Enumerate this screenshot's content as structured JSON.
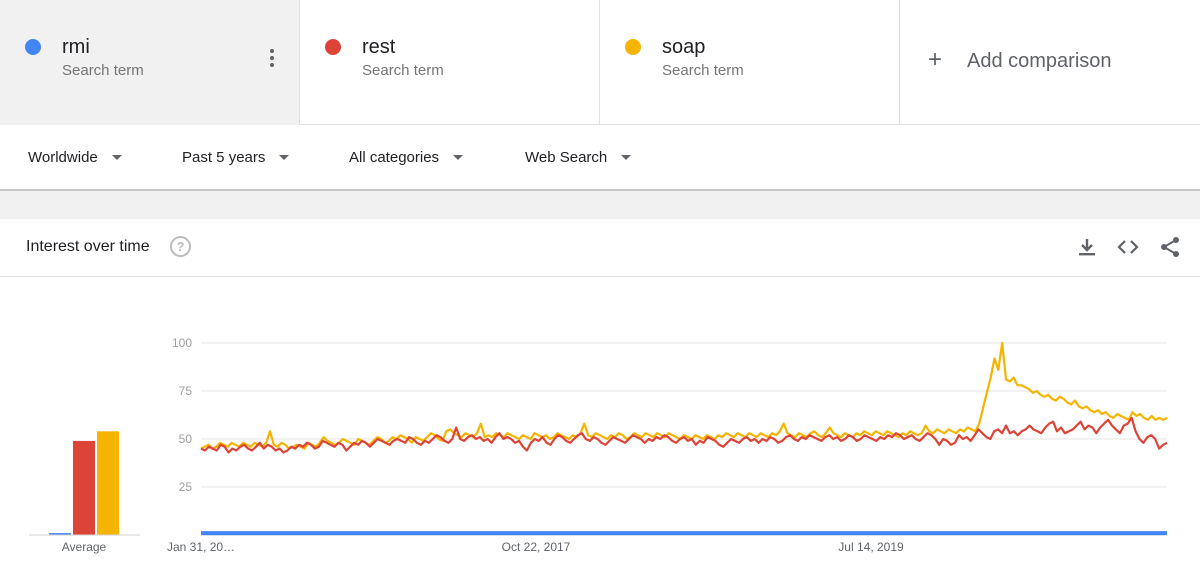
{
  "terms": [
    {
      "name": "rmi",
      "sub": "Search term",
      "color": "#4285f4"
    },
    {
      "name": "rest",
      "sub": "Search term",
      "color": "#db4437"
    },
    {
      "name": "soap",
      "sub": "Search term",
      "color": "#f4b400"
    }
  ],
  "add_comparison": "Add comparison",
  "filters": {
    "region": "Worldwide",
    "period": "Past 5 years",
    "category": "All categories",
    "search_type": "Web Search"
  },
  "card": {
    "title": "Interest over time",
    "help": "?"
  },
  "icons": {
    "help": "help-icon",
    "download": "download-icon",
    "embed": "embed-code-icon",
    "share": "share-icon",
    "more": "more-vert-icon"
  },
  "chart_data": {
    "type": "line",
    "ylim": [
      0,
      100
    ],
    "yticks": [
      25,
      50,
      75,
      100
    ],
    "xticks": [
      "Jan 31, 20…",
      "Oct 22, 2017",
      "Jul 14, 2019"
    ],
    "averages": {
      "label": "Average",
      "values": [
        1,
        49,
        54
      ]
    },
    "series": [
      {
        "name": "rmi",
        "color": "#4285f4",
        "values": [
          1,
          1,
          1,
          1,
          1,
          1,
          1,
          1,
          1,
          1,
          1,
          1,
          1,
          1,
          1,
          1,
          1,
          1,
          1,
          1,
          1,
          1,
          1,
          1,
          1,
          1,
          1,
          1,
          1,
          1,
          1,
          1,
          1,
          1,
          1,
          1,
          1,
          1,
          1,
          1,
          1,
          1,
          1,
          1,
          1,
          1,
          1,
          1,
          1,
          1,
          1,
          1,
          1,
          1,
          1,
          1,
          1,
          1,
          1,
          1,
          1,
          1,
          1,
          1,
          1,
          1,
          1,
          1,
          1,
          1,
          1,
          1,
          1,
          1,
          1,
          1,
          1,
          1,
          1,
          1,
          1,
          1,
          1,
          1,
          1,
          1,
          1,
          1,
          1,
          1,
          1,
          1,
          1,
          1,
          1,
          1,
          1,
          1,
          1,
          1,
          1,
          1,
          1,
          1,
          1,
          1,
          1,
          1,
          1,
          1,
          1,
          1,
          1,
          1,
          1,
          1,
          1,
          1,
          1,
          1,
          1,
          1,
          1,
          1,
          1,
          1,
          1,
          1,
          1,
          1,
          1,
          1,
          1,
          1,
          1,
          1,
          1,
          1,
          1,
          1,
          1,
          1,
          1,
          1,
          1,
          1,
          1,
          1,
          1,
          1,
          1,
          1,
          1,
          1,
          1,
          1,
          1,
          1,
          1,
          1,
          1,
          1,
          1,
          1,
          1,
          1,
          1,
          1,
          1,
          1,
          1,
          1,
          1,
          1,
          1,
          1,
          1,
          1,
          1,
          1,
          1,
          1,
          1,
          1,
          1,
          1,
          1,
          1,
          1,
          1,
          1,
          1,
          1,
          1,
          1,
          1,
          1,
          1,
          1,
          1,
          1,
          1,
          1,
          1,
          1,
          1,
          1,
          1,
          1,
          1,
          1,
          1,
          1,
          1,
          1,
          1,
          1,
          1,
          1,
          1,
          1,
          1,
          1,
          1,
          1,
          1,
          1,
          1,
          1,
          1,
          1,
          1,
          1,
          1,
          1,
          1,
          1,
          1,
          1,
          1,
          1,
          1,
          1,
          1,
          1,
          1,
          1,
          1,
          1,
          1,
          1,
          1,
          1,
          1,
          1
        ]
      },
      {
        "name": "rest",
        "color": "#db4437",
        "values": [
          45,
          44,
          46,
          45,
          44,
          47,
          46,
          43,
          45,
          44,
          46,
          47,
          45,
          44,
          46,
          48,
          45,
          47,
          46,
          44,
          45,
          43,
          44,
          46,
          45,
          47,
          46,
          48,
          47,
          45,
          46,
          49,
          48,
          47,
          46,
          48,
          47,
          44,
          46,
          48,
          47,
          49,
          48,
          46,
          48,
          50,
          49,
          48,
          47,
          49,
          50,
          49,
          48,
          51,
          50,
          48,
          47,
          49,
          48,
          50,
          52,
          51,
          49,
          48,
          50,
          56,
          50,
          49,
          51,
          52,
          50,
          51,
          49,
          50,
          48,
          51,
          53,
          50,
          51,
          50,
          48,
          49,
          46,
          44,
          48,
          50,
          49,
          51,
          48,
          47,
          50,
          52,
          51,
          49,
          48,
          50,
          52,
          53,
          50,
          49,
          51,
          50,
          48,
          47,
          49,
          51,
          50,
          49,
          48,
          50,
          52,
          51,
          50,
          48,
          50,
          49,
          51,
          50,
          52,
          51,
          49,
          48,
          50,
          51,
          49,
          50,
          47,
          49,
          48,
          51,
          50,
          49,
          47,
          46,
          48,
          50,
          49,
          48,
          50,
          51,
          49,
          50,
          48,
          50,
          49,
          51,
          50,
          48,
          49,
          51,
          52,
          50,
          49,
          51,
          50,
          52,
          51,
          50,
          49,
          51,
          52,
          50,
          51,
          49,
          50,
          52,
          51,
          49,
          50,
          52,
          51,
          50,
          49,
          51,
          50,
          52,
          51,
          53,
          52,
          50,
          51,
          52,
          50,
          49,
          51,
          53,
          52,
          50,
          47,
          50,
          49,
          47,
          48,
          52,
          50,
          51,
          49,
          52,
          55,
          53,
          51,
          50,
          54,
          55,
          53,
          57,
          53,
          54,
          52,
          54,
          55,
          57,
          55,
          54,
          53,
          56,
          58,
          59,
          54,
          56,
          53,
          54,
          55,
          57,
          59,
          55,
          57,
          56,
          53,
          56,
          58,
          60,
          57,
          55,
          53,
          57,
          58,
          61,
          54,
          50,
          48,
          51,
          52,
          50,
          45,
          47,
          48
        ]
      },
      {
        "name": "soap",
        "color": "#f4b400",
        "values": [
          45,
          46,
          47,
          45,
          46,
          48,
          47,
          46,
          48,
          47,
          46,
          48,
          47,
          46,
          48,
          47,
          46,
          48,
          54,
          47,
          46,
          48,
          47,
          45,
          46,
          47,
          46,
          45,
          48,
          47,
          46,
          48,
          51,
          49,
          48,
          47,
          48,
          50,
          49,
          48,
          47,
          50,
          49,
          48,
          47,
          49,
          51,
          50,
          48,
          49,
          51,
          50,
          52,
          51,
          50,
          48,
          51,
          50,
          49,
          51,
          53,
          52,
          50,
          49,
          54,
          55,
          53,
          52,
          51,
          53,
          52,
          51,
          53,
          58,
          51,
          52,
          51,
          53,
          52,
          51,
          53,
          52,
          51,
          50,
          52,
          51,
          50,
          53,
          52,
          51,
          52,
          50,
          51,
          53,
          52,
          51,
          50,
          52,
          51,
          53,
          58,
          52,
          51,
          53,
          52,
          51,
          50,
          52,
          51,
          53,
          52,
          50,
          51,
          53,
          52,
          51,
          53,
          52,
          51,
          53,
          52,
          51,
          53,
          52,
          51,
          50,
          52,
          51,
          50,
          52,
          51,
          50,
          52,
          51,
          50,
          52,
          51,
          53,
          52,
          51,
          53,
          52,
          51,
          53,
          52,
          51,
          53,
          52,
          51,
          53,
          52,
          54,
          58,
          53,
          52,
          51,
          53,
          52,
          51,
          53,
          54,
          52,
          51,
          53,
          56,
          53,
          52,
          51,
          53,
          52,
          51,
          53,
          52,
          54,
          53,
          52,
          54,
          53,
          52,
          54,
          53,
          52,
          51,
          53,
          52,
          54,
          53,
          52,
          53,
          57,
          54,
          53,
          55,
          54,
          53,
          55,
          54,
          53,
          55,
          54,
          56,
          55,
          54,
          58,
          66,
          74,
          82,
          92,
          86,
          100,
          81,
          80,
          82,
          78,
          78,
          77,
          76,
          74,
          75,
          73,
          72,
          73,
          71,
          70,
          72,
          71,
          69,
          68,
          70,
          67,
          66,
          67,
          65,
          64,
          65,
          63,
          64,
          62,
          61,
          63,
          62,
          61,
          60,
          64,
          62,
          63,
          61,
          60,
          62,
          60,
          61,
          60,
          61
        ]
      }
    ]
  }
}
